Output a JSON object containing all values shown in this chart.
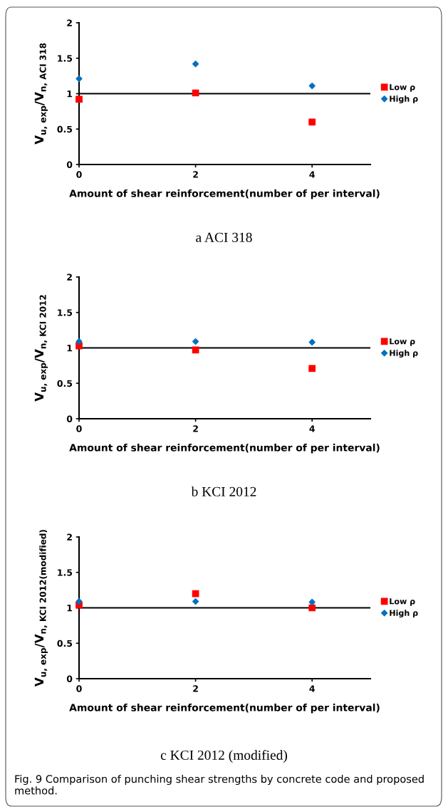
{
  "chart_data": [
    {
      "type": "scatter",
      "title": "a ACI 318",
      "xlabel": "Amount of shear reinforcement(number of per interval)",
      "ylabel": "V$_{u, exp}$/V$_{n, ACI 318}$",
      "xlim": [
        0,
        5
      ],
      "xticks": [
        0,
        2,
        4
      ],
      "ylim": [
        0,
        2
      ],
      "yticks": [
        0,
        0.5,
        1,
        1.5,
        2
      ],
      "grid": false,
      "legend": "right",
      "x": [
        0,
        2,
        4
      ],
      "series": [
        {
          "name": "Low ρ",
          "color": "#ff0000",
          "marker": "square",
          "values": [
            0.92,
            1.01,
            0.6
          ]
        },
        {
          "name": "High ρ",
          "color": "#0070c0",
          "marker": "diamond",
          "values": [
            1.21,
            1.42,
            1.11
          ]
        }
      ],
      "ref_lines": [
        {
          "axis": "y",
          "value": 1,
          "label": null,
          "color": "#000000"
        }
      ]
    },
    {
      "type": "scatter",
      "title": "b KCI 2012",
      "xlabel": "Amount of shear reinforcement(number of per interval)",
      "ylabel": "V$_{u, exp}$/V$_{n, KCI 2012}$",
      "xlim": [
        0,
        5
      ],
      "xticks": [
        0,
        2,
        4
      ],
      "ylim": [
        0,
        2
      ],
      "yticks": [
        0,
        0.5,
        1,
        1.5,
        2
      ],
      "grid": false,
      "legend": "right",
      "x": [
        0,
        2,
        4
      ],
      "series": [
        {
          "name": "Low ρ",
          "color": "#ff0000",
          "marker": "square",
          "values": [
            1.03,
            0.97,
            0.71
          ]
        },
        {
          "name": "High ρ",
          "color": "#0070c0",
          "marker": "diamond",
          "values": [
            1.09,
            1.09,
            1.08
          ]
        }
      ],
      "ref_lines": [
        {
          "axis": "y",
          "value": 1,
          "label": null,
          "color": "#000000"
        }
      ]
    },
    {
      "type": "scatter",
      "title": "c KCI 2012 (modified)",
      "xlabel": "Amount of shear reinforcement(number of per interval)",
      "ylabel": "V$_{u, exp}$/V$_{n, KCI 2012(modified)}$",
      "xlim": [
        0,
        5
      ],
      "xticks": [
        0,
        2,
        4
      ],
      "ylim": [
        0,
        2
      ],
      "yticks": [
        0,
        0.5,
        1,
        1.5,
        2
      ],
      "grid": false,
      "legend": "right",
      "x": [
        0,
        2,
        4
      ],
      "series": [
        {
          "name": "Low ρ",
          "color": "#ff0000",
          "marker": "square",
          "values": [
            1.04,
            1.2,
            1.0
          ]
        },
        {
          "name": "High ρ",
          "color": "#0070c0",
          "marker": "diamond",
          "values": [
            1.09,
            1.09,
            1.08
          ]
        }
      ],
      "ref_lines": [
        {
          "axis": "y",
          "value": 1,
          "label": null,
          "color": "#000000"
        }
      ],
      "annotations": [
        "Fig. 9 Comparison of punching shear strengths by concrete code and proposed method."
      ]
    }
  ]
}
